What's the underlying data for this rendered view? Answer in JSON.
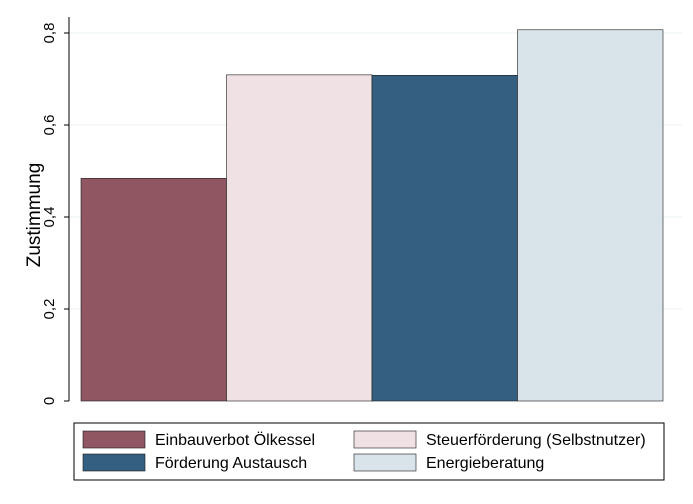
{
  "chart_data": {
    "type": "bar",
    "ylabel": "Zustimmung",
    "xlabel": "",
    "ylim": [
      0,
      0.8
    ],
    "yticks": [
      {
        "value": 0,
        "label": "0"
      },
      {
        "value": 0.2,
        "label": "0,2"
      },
      {
        "value": 0.4,
        "label": "0,4"
      },
      {
        "value": 0.6,
        "label": "0,6"
      },
      {
        "value": 0.8,
        "label": "0,8"
      }
    ],
    "grid": true,
    "legend_position": "bottom",
    "series": [
      {
        "name": "Einbauverbot Ölkessel",
        "value": 0.484,
        "color": "#905661"
      },
      {
        "name": "Steuerförderung (Selbstnutzer)",
        "value": 0.709,
        "color": "#efe1e4"
      },
      {
        "name": "Förderung Austausch",
        "value": 0.708,
        "color": "#355f80"
      },
      {
        "name": "Energieberatung",
        "value": 0.807,
        "color": "#d8e3ea"
      }
    ]
  }
}
